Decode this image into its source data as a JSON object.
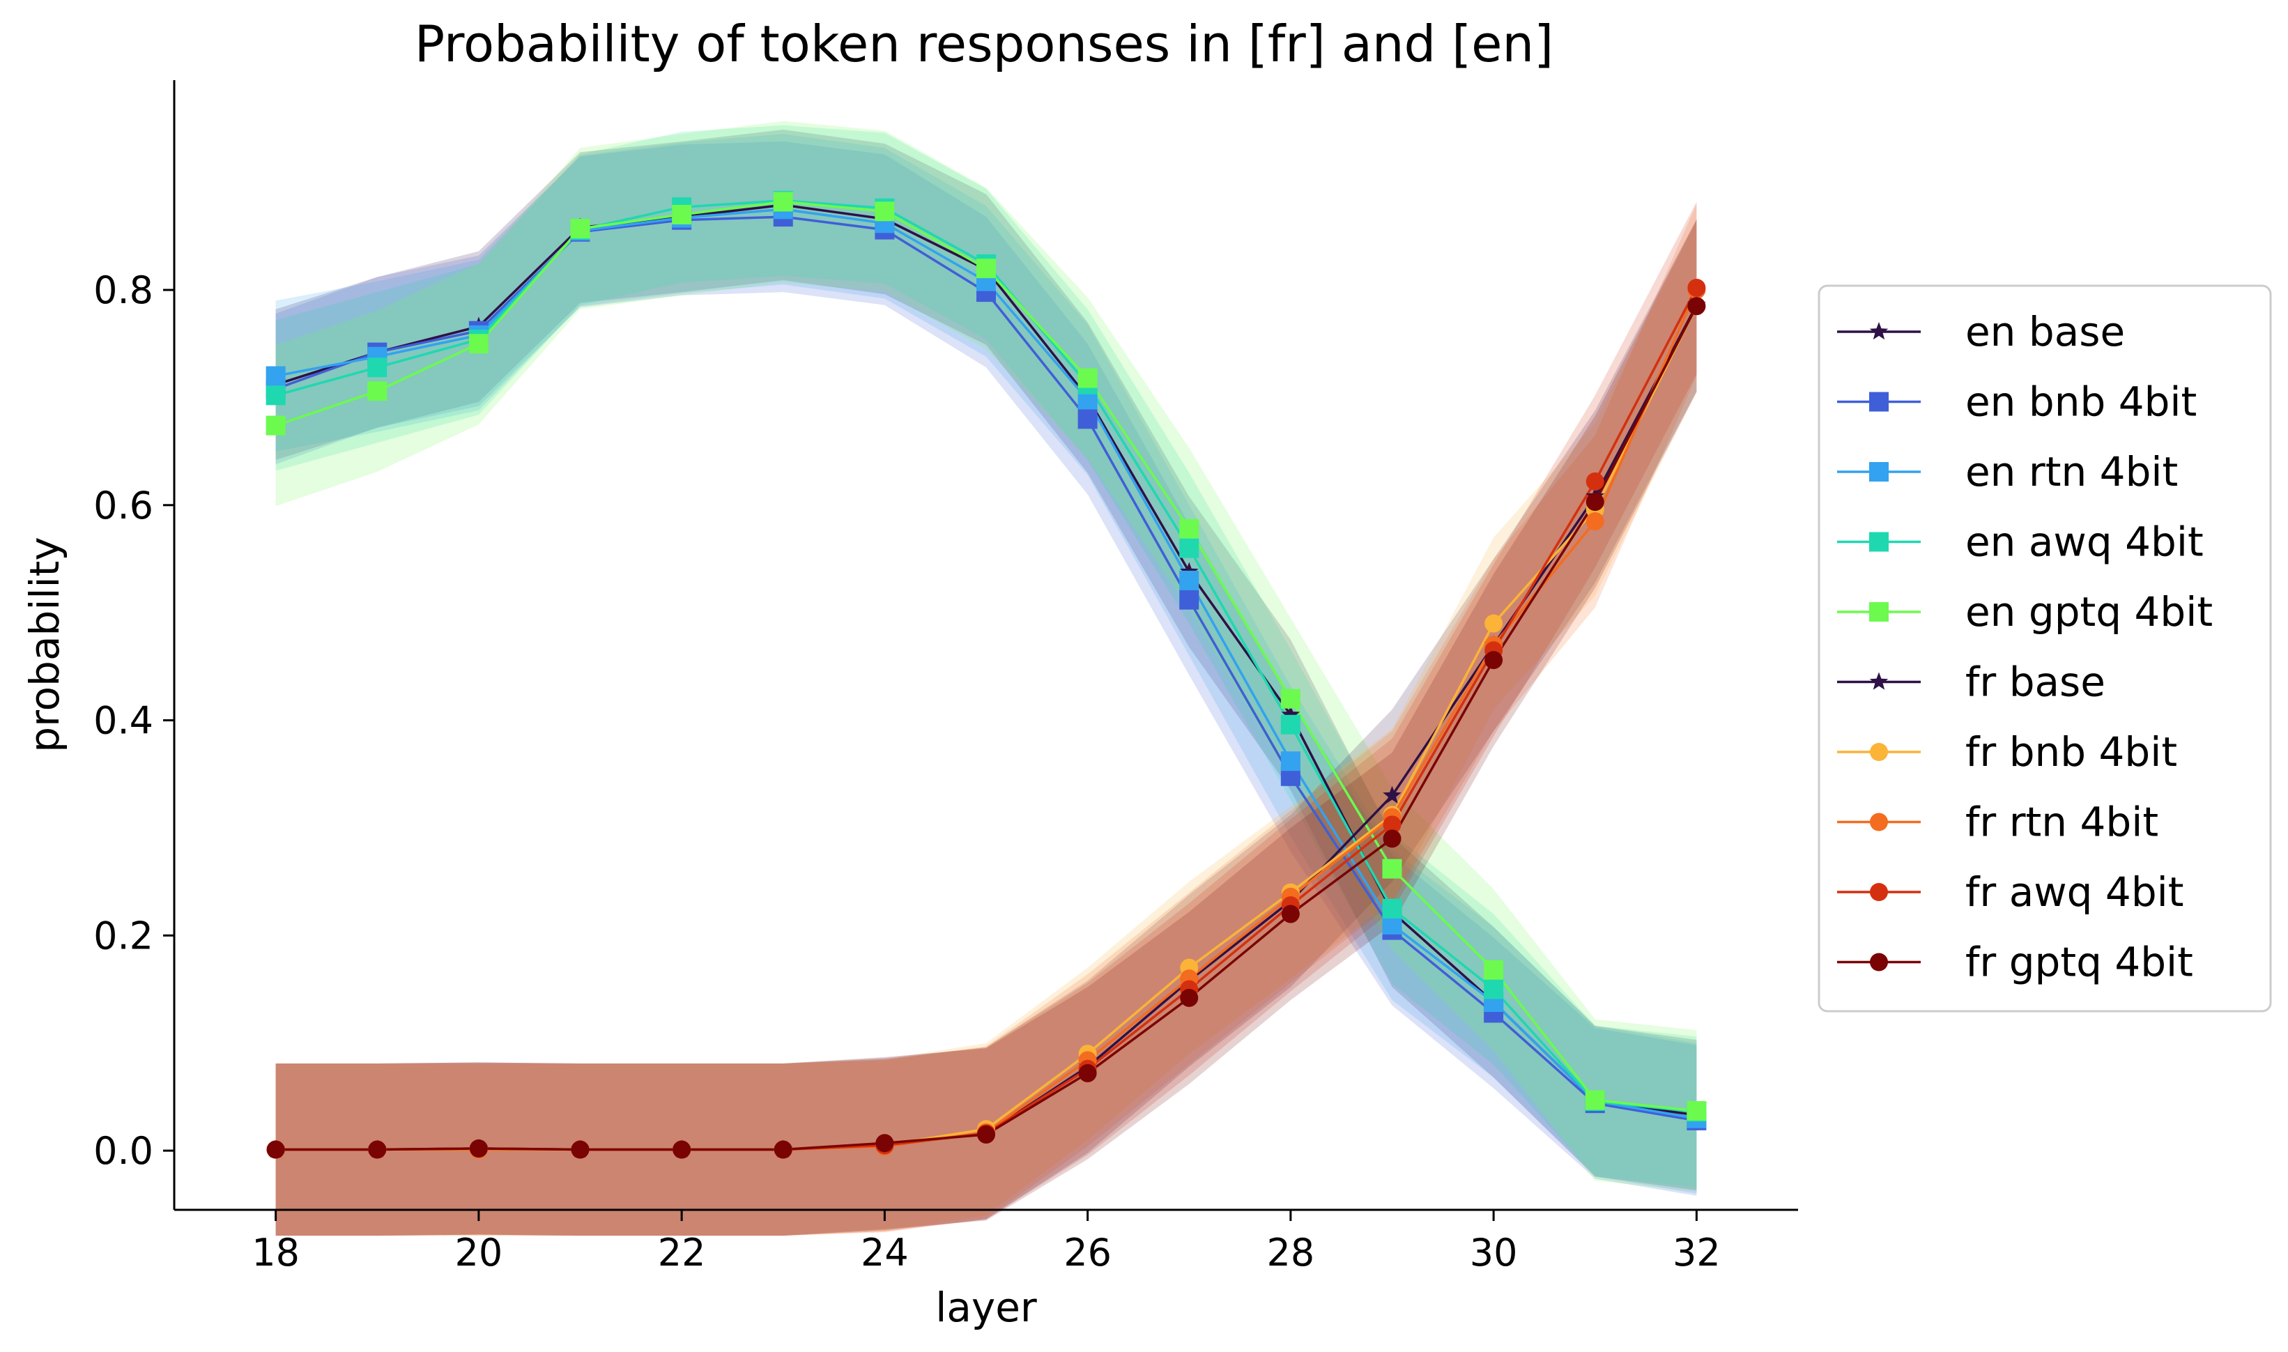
{
  "chart_data": {
    "type": "line",
    "title": "Probability of token responses in [fr] and [en]",
    "xlabel": "layer",
    "ylabel": "probability",
    "xlim": [
      17,
      33
    ],
    "ylim": [
      -0.055,
      0.995
    ],
    "xticks": [
      18,
      20,
      22,
      24,
      26,
      28,
      30,
      32
    ],
    "yticks": [
      0.0,
      0.2,
      0.4,
      0.6,
      0.8
    ],
    "ytick_labels": [
      "0.0",
      "0.2",
      "0.4",
      "0.6",
      "0.8"
    ],
    "grid": false,
    "legend_position": "right",
    "x": [
      18,
      19,
      20,
      21,
      22,
      23,
      24,
      25,
      26,
      27,
      28,
      29,
      30,
      31,
      32
    ],
    "series": [
      {
        "name": "en base",
        "color": "#2e1147",
        "marker": "star",
        "values": [
          0.712,
          0.742,
          0.766,
          0.858,
          0.868,
          0.879,
          0.866,
          0.819,
          0.7,
          0.538,
          0.405,
          0.222,
          0.138,
          0.046,
          0.033
        ],
        "band": 0.07
      },
      {
        "name": "en bnb 4bit",
        "color": "#3f5fd8",
        "marker": "square",
        "values": [
          0.708,
          0.742,
          0.762,
          0.854,
          0.865,
          0.868,
          0.856,
          0.798,
          0.68,
          0.512,
          0.348,
          0.205,
          0.128,
          0.044,
          0.028
        ],
        "band": 0.07
      },
      {
        "name": "en rtn 4bit",
        "color": "#33a2ef",
        "marker": "square",
        "values": [
          0.72,
          0.738,
          0.758,
          0.855,
          0.867,
          0.875,
          0.862,
          0.808,
          0.698,
          0.53,
          0.362,
          0.21,
          0.138,
          0.046,
          0.03
        ],
        "band": 0.07
      },
      {
        "name": "en awq 4bit",
        "color": "#1fd8b0",
        "marker": "square",
        "values": [
          0.702,
          0.728,
          0.754,
          0.856,
          0.877,
          0.883,
          0.876,
          0.824,
          0.712,
          0.56,
          0.396,
          0.225,
          0.15,
          0.046,
          0.036
        ],
        "band": 0.07
      },
      {
        "name": "en gptq 4bit",
        "color": "#6cfa4f",
        "marker": "square",
        "values": [
          0.674,
          0.706,
          0.75,
          0.857,
          0.87,
          0.882,
          0.873,
          0.82,
          0.718,
          0.578,
          0.42,
          0.262,
          0.168,
          0.047,
          0.037
        ],
        "band": 0.075
      },
      {
        "name": "fr base",
        "color": "#2e1147",
        "marker": "star",
        "values": [
          0.001,
          0.001,
          0.002,
          0.001,
          0.001,
          0.001,
          0.006,
          0.016,
          0.078,
          0.158,
          0.232,
          0.33,
          0.47,
          0.608,
          0.786
        ],
        "band": 0.08
      },
      {
        "name": "fr bnb 4bit",
        "color": "#fbb338",
        "marker": "circle",
        "values": [
          0.001,
          0.001,
          0.001,
          0.001,
          0.001,
          0.001,
          0.005,
          0.02,
          0.09,
          0.17,
          0.24,
          0.312,
          0.49,
          0.596,
          0.785
        ],
        "band": 0.08
      },
      {
        "name": "fr rtn 4bit",
        "color": "#f36c1f",
        "marker": "circle",
        "values": [
          0.001,
          0.001,
          0.001,
          0.001,
          0.001,
          0.001,
          0.004,
          0.017,
          0.084,
          0.16,
          0.236,
          0.31,
          0.47,
          0.585,
          0.8
        ],
        "band": 0.08
      },
      {
        "name": "fr awq 4bit",
        "color": "#d4300f",
        "marker": "circle",
        "values": [
          0.001,
          0.001,
          0.002,
          0.001,
          0.001,
          0.001,
          0.005,
          0.016,
          0.076,
          0.15,
          0.228,
          0.303,
          0.465,
          0.622,
          0.802
        ],
        "band": 0.08
      },
      {
        "name": "fr gptq 4bit",
        "color": "#7a0403",
        "marker": "circle",
        "values": [
          0.001,
          0.001,
          0.002,
          0.001,
          0.001,
          0.001,
          0.007,
          0.015,
          0.072,
          0.142,
          0.22,
          0.29,
          0.456,
          0.603,
          0.785
        ],
        "band": 0.08
      }
    ]
  }
}
